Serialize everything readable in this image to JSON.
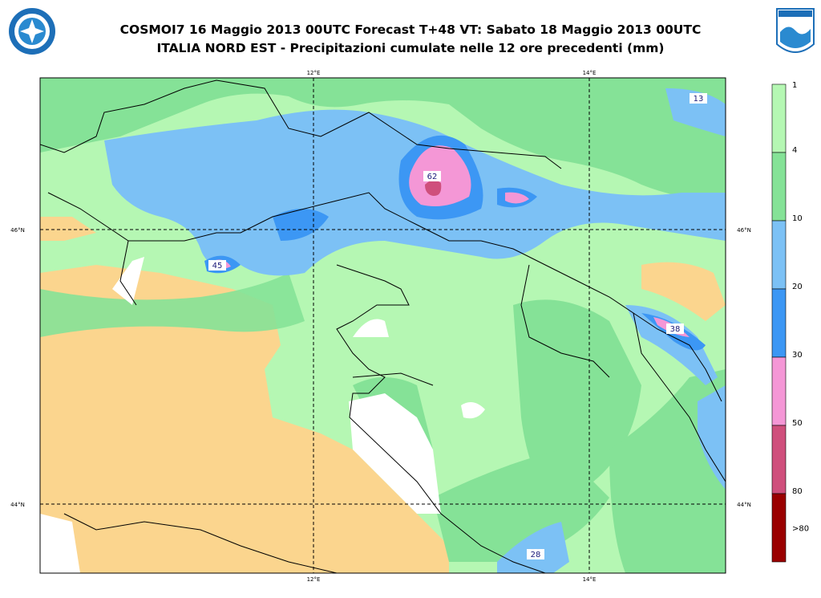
{
  "header": {
    "title": [
      "COSMOI7 16 Maggio 2013 00UTC Forecast T+48 VT: Sabato 18 Maggio 2013 00UTC",
      "ITALIA NORD EST - Precipitazioni cumulate nelle 12 ore precedenti (mm)"
    ]
  },
  "map": {
    "grid_labels": {
      "longitude": [
        "12°E",
        "14°E"
      ],
      "latitude": [
        "46°N",
        "44°N"
      ]
    },
    "value_labels": [
      "13",
      "62",
      "45",
      "38",
      "28"
    ]
  },
  "legend": {
    "labels": [
      "1",
      "4",
      "10",
      "20",
      "30",
      "50",
      "80",
      ">80"
    ],
    "colors": [
      "#b5f7b3",
      "#85e297",
      "#7cc1f5",
      "#3c97f4",
      "#f497d6",
      "#cf4f7c",
      "#9a0000"
    ]
  }
}
